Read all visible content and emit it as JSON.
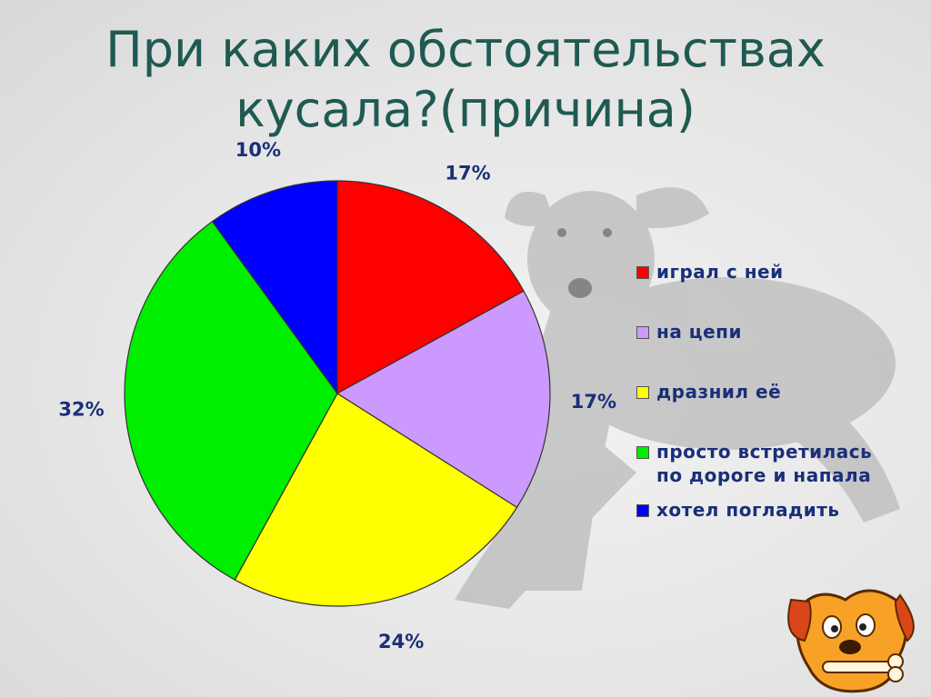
{
  "title": {
    "line1": "При каких обстоятельствах",
    "line2": "кусала?(причина)"
  },
  "chart_data": {
    "type": "pie",
    "categories": [
      "играл с ней",
      "на цепи",
      "дразнил её",
      "просто встретилась по дороге и напала",
      "хотел погладить"
    ],
    "legend_lines": [
      [
        "играл с ней"
      ],
      [
        "на цепи"
      ],
      [
        "дразнил её"
      ],
      [
        "просто встретилась",
        "по дороге и напала"
      ],
      [
        "хотел погладить"
      ]
    ],
    "values": [
      17,
      17,
      24,
      32,
      10
    ],
    "labels": [
      "17%",
      "17%",
      "24%",
      "32%",
      "10%"
    ],
    "colors": [
      "#ff0000",
      "#cc99ff",
      "#ffff00",
      "#00ee00",
      "#0000ff"
    ],
    "legend_position": "right"
  }
}
